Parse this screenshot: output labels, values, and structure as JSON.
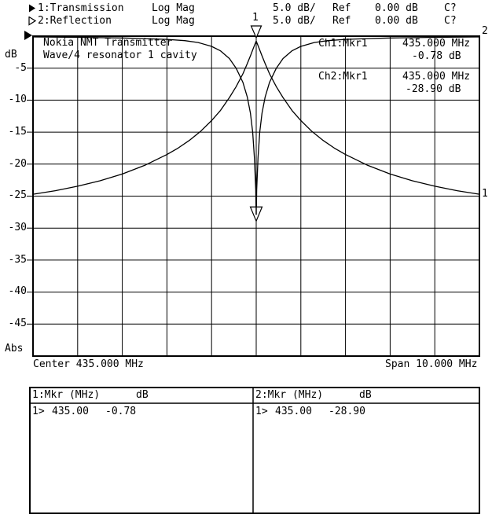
{
  "header": {
    "rows": [
      {
        "trace": "1:Transmission",
        "format": "Log Mag",
        "scale": "5.0 dB/",
        "ref_label": "Ref",
        "ref_value": "0.00 dB",
        "status": "C?"
      },
      {
        "trace": "2:Reflection",
        "format": "Log Mag",
        "scale": "5.0 dB/",
        "ref_label": "Ref",
        "ref_value": "0.00 dB",
        "status": "C?"
      }
    ]
  },
  "plot": {
    "y_axis_unit": "dB",
    "y_axis_bottom_label": "Abs",
    "y_ticks": [
      "-5",
      "-10",
      "-15",
      "-20",
      "-25",
      "-30",
      "-35",
      "-40",
      "-45"
    ],
    "title_line1": "Nokia NMT Transmitter",
    "title_line2": "Wave/4 resonator 1 cavity",
    "ch1_readout": {
      "label": "Ch1:Mkr1",
      "freq": "435.000 MHz",
      "value": "-0.78 dB"
    },
    "ch2_readout": {
      "label": "Ch2:Mkr1",
      "freq": "435.000 MHz",
      "value": "-28.90 dB"
    },
    "marker1_flag": "1",
    "trace1_label": "1",
    "trace2_label": "2",
    "center_label": "Center 435.000 MHz",
    "span_label": "Span 10.000 MHz"
  },
  "marker_table": {
    "left": {
      "header": "1:Mkr (MHz)",
      "unit": "dB",
      "rows": [
        {
          "idx": "1>",
          "freq": "435.00",
          "value": "-0.78"
        }
      ]
    },
    "right": {
      "header": "2:Mkr (MHz)",
      "unit": "dB",
      "rows": [
        {
          "idx": "1>",
          "freq": "435.00",
          "value": "-28.90"
        }
      ]
    }
  },
  "colors": {
    "foreground": "#000000",
    "background": "#ffffff"
  },
  "chart_data": {
    "type": "line",
    "title": "Nokia NMT Transmitter Wave/4 resonator 1 cavity",
    "ylabel": "dB",
    "y_range": [
      -50,
      0
    ],
    "y_per_div": 5,
    "x_center_mhz": 435.0,
    "x_span_mhz": 10.0,
    "x_range": [
      430,
      440
    ],
    "grid": "on",
    "series": [
      {
        "name": "1:Transmission",
        "x": [
          430,
          430.5,
          431,
          431.5,
          432,
          432.5,
          433,
          433.25,
          433.5,
          433.75,
          434,
          434.2,
          434.4,
          434.55,
          434.7,
          434.8,
          434.88,
          434.94,
          435,
          435.06,
          435.12,
          435.2,
          435.3,
          435.45,
          435.6,
          435.8,
          436,
          436.25,
          436.5,
          436.75,
          437,
          437.5,
          438,
          438.5,
          439,
          439.5,
          440
        ],
        "y": [
          -24.7,
          -24.15,
          -23.45,
          -22.6,
          -21.55,
          -20.2,
          -18.5,
          -17.5,
          -16.3,
          -14.9,
          -13.2,
          -11.6,
          -9.6,
          -7.9,
          -5.9,
          -4.3,
          -2.9,
          -1.8,
          -0.78,
          -1.8,
          -2.9,
          -4.3,
          -5.9,
          -7.9,
          -9.6,
          -11.6,
          -13.2,
          -14.9,
          -16.3,
          -17.5,
          -18.5,
          -20.2,
          -21.55,
          -22.6,
          -23.45,
          -24.15,
          -24.7
        ]
      },
      {
        "name": "2:Reflection",
        "x": [
          430,
          431,
          432,
          432.5,
          433,
          433.4,
          433.7,
          434,
          434.2,
          434.4,
          434.55,
          434.7,
          434.8,
          434.87,
          434.92,
          434.96,
          434.99,
          435,
          435.01,
          435.04,
          435.08,
          435.13,
          435.2,
          435.3,
          435.45,
          435.6,
          435.8,
          436,
          436.3,
          436.6,
          437,
          437.5,
          438,
          439,
          440
        ],
        "y": [
          -0.12,
          -0.18,
          -0.28,
          -0.38,
          -0.5,
          -0.7,
          -1.0,
          -1.6,
          -2.3,
          -3.5,
          -5.0,
          -7.2,
          -9.5,
          -12.0,
          -15.0,
          -19.0,
          -24.0,
          -28.9,
          -24.0,
          -19.0,
          -15.0,
          -12.0,
          -9.5,
          -7.2,
          -5.0,
          -3.5,
          -2.3,
          -1.6,
          -1.0,
          -0.7,
          -0.5,
          -0.38,
          -0.28,
          -0.18,
          -0.12
        ]
      }
    ],
    "markers": [
      {
        "channel": "Ch1",
        "label": "1",
        "freq_mhz": 435.0,
        "value_db": -0.78
      },
      {
        "channel": "Ch2",
        "label": "1",
        "freq_mhz": 435.0,
        "value_db": -28.9
      }
    ]
  }
}
